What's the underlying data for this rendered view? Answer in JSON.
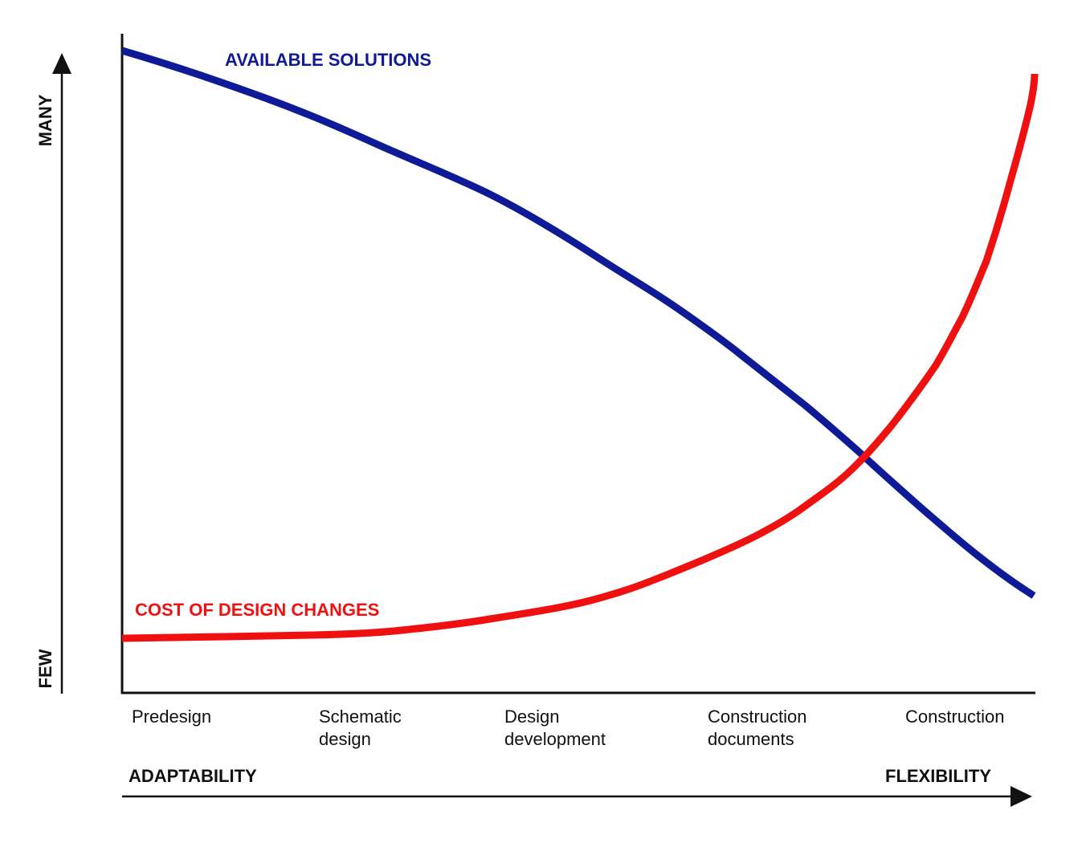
{
  "curves": {
    "available": "AVAILABLE SOLUTIONS",
    "cost": "COST OF DESIGN CHANGES"
  },
  "y_axis": {
    "top": "MANY",
    "bottom": "FEW"
  },
  "x_axis": {
    "left": "ADAPTABILITY",
    "right": "FLEXIBILITY"
  },
  "phases": [
    [
      "Predesign"
    ],
    [
      "Schematic",
      "design"
    ],
    [
      "Design",
      "development"
    ],
    [
      "Construction",
      "documents"
    ],
    [
      "Construction"
    ]
  ]
}
